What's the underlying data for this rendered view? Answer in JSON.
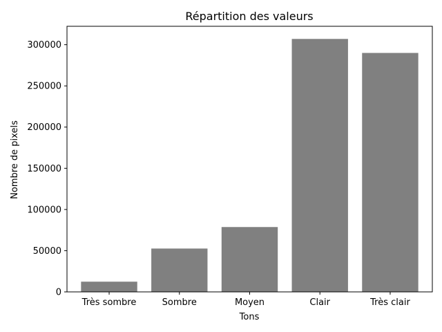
{
  "chart_data": {
    "type": "bar",
    "title": "Répartition des valeurs",
    "xlabel": "Tons",
    "ylabel": "Nombre de pixels",
    "categories": [
      "Très sombre",
      "Sombre",
      "Moyen",
      "Clair",
      "Très clair"
    ],
    "values": [
      12400,
      52600,
      78700,
      307000,
      290000
    ],
    "ylim": [
      0,
      322350
    ],
    "yticks": [
      0,
      50000,
      100000,
      150000,
      200000,
      250000,
      300000
    ],
    "ytick_labels": [
      "0",
      "50000",
      "100000",
      "150000",
      "200000",
      "250000",
      "300000"
    ],
    "bar_color": "#808080",
    "grid": false,
    "legend": "none"
  }
}
